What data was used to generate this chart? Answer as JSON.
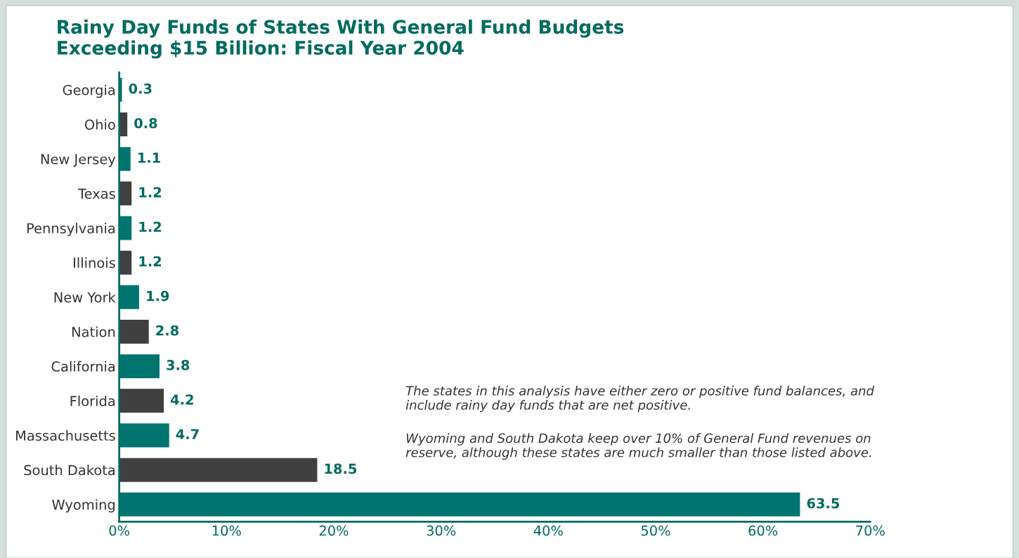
{
  "chart_data": {
    "type": "bar",
    "orientation": "horizontal",
    "title": "Rainy Day Funds of States With General Fund Budgets\nExceeding $15 Billion: Fiscal Year 2004",
    "categories": [
      "Georgia",
      "Ohio",
      "New Jersey",
      "Texas",
      "Pennsylvania",
      "Illinois",
      "New York",
      "Nation",
      "California",
      "Florida",
      "Massachusetts",
      "South Dakota",
      "Wyoming"
    ],
    "values": [
      0.3,
      0.8,
      1.1,
      1.2,
      1.2,
      1.2,
      1.9,
      2.8,
      3.8,
      4.2,
      4.7,
      18.5,
      63.5
    ],
    "colors": [
      "#007570",
      "#404040",
      "#007570",
      "#404040",
      "#007570",
      "#404040",
      "#007570",
      "#404040",
      "#007570",
      "#404040",
      "#007570",
      "#404040",
      "#007570"
    ],
    "xlim": [
      0,
      70
    ],
    "xticks": [
      {
        "value": 0,
        "label": "0%"
      },
      {
        "value": 10,
        "label": "10%"
      },
      {
        "value": 20,
        "label": "20%"
      },
      {
        "value": 30,
        "label": "30%"
      },
      {
        "value": 40,
        "label": "40%"
      },
      {
        "value": 50,
        "label": "50%"
      },
      {
        "value": 60,
        "label": "60%"
      },
      {
        "value": 70,
        "label": "70%"
      }
    ],
    "data_labels": true,
    "grid": false,
    "legend": false,
    "annotations": [
      "The states in this analysis have either zero or positive fund balances, and\ninclude rainy day funds that are net positive.",
      "Wyoming and South Dakota keep over 10% of General Fund revenues on\nreserve, although these states are much smaller than those listed above."
    ]
  }
}
